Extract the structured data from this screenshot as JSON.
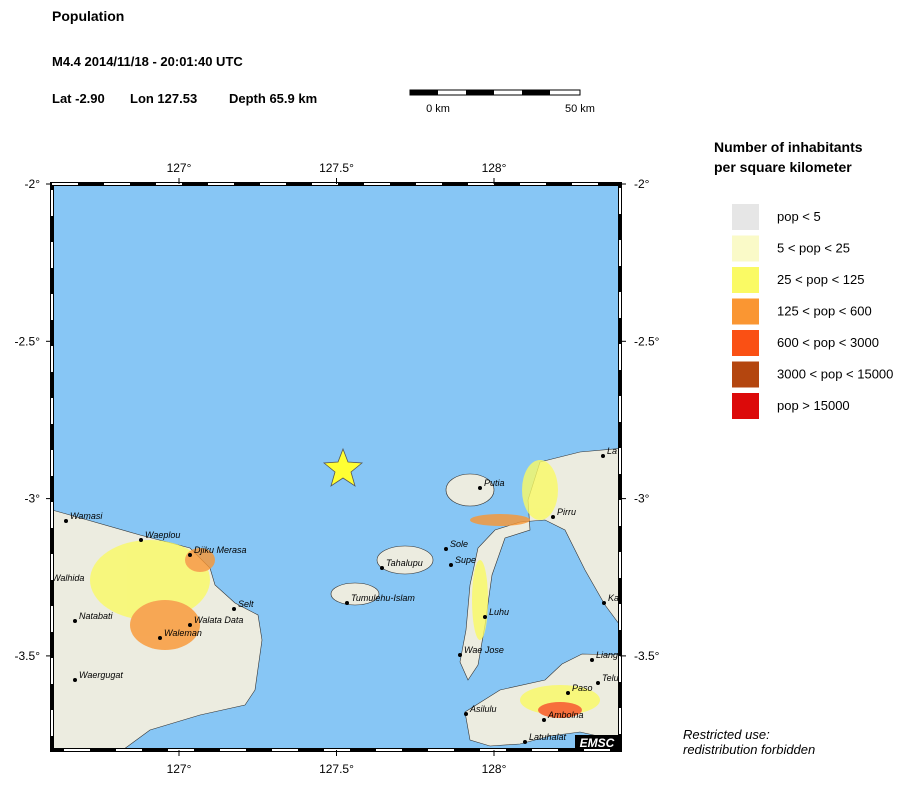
{
  "header": {
    "title": "Population",
    "event": "M4.4  2014/11/18 - 20:01:40 UTC",
    "lat": "Lat -2.90",
    "lon": "Lon 127.53",
    "depth": "Depth  65.9 km"
  },
  "scale_bar": {
    "start": "0 km",
    "end": "50 km"
  },
  "map": {
    "lon_ticks": [
      {
        "value": 127,
        "label": "127°"
      },
      {
        "value": 127.5,
        "label": "127.5°"
      },
      {
        "value": 128,
        "label": "128°"
      }
    ],
    "lat_ticks": [
      {
        "value": -2,
        "label": "-2°"
      },
      {
        "value": -2.5,
        "label": "-2.5°"
      },
      {
        "value": -3,
        "label": "-3°"
      },
      {
        "value": -3.5,
        "label": "-3.5°"
      }
    ],
    "places": [
      "Wamasi",
      "Waeplou",
      "Djiku Merasa",
      "Walhida",
      "Natabati",
      "Selt",
      "Walata Data",
      "Waleman",
      "Waergugat",
      "Sole",
      "Tahalupu",
      "Supe",
      "Tumulehu-Islam",
      "Putia",
      "Pirru",
      "La",
      "Ka",
      "Luhu",
      "Wae Jose",
      "Liang",
      "Telu",
      "Paso",
      "Asilulu",
      "Ambolna",
      "Latuhalat"
    ],
    "logo": "EMSC"
  },
  "legend": {
    "title": [
      "Number of inhabitants",
      "per square kilometer"
    ],
    "items": [
      {
        "label": "pop < 5",
        "color": "#e6e6e6"
      },
      {
        "label": "5 < pop < 25",
        "color": "#fafac8"
      },
      {
        "label": "25 < pop < 125",
        "color": "#fafa64"
      },
      {
        "label": "125 < pop < 600",
        "color": "#fa9632"
      },
      {
        "label": "600 < pop < 3000",
        "color": "#fa5014"
      },
      {
        "label": "3000 < pop < 15000",
        "color": "#b4460f"
      },
      {
        "label": "pop > 15000",
        "color": "#dc0a0a"
      }
    ]
  },
  "notice": [
    "Restricted use:",
    "redistribution forbidden"
  ]
}
